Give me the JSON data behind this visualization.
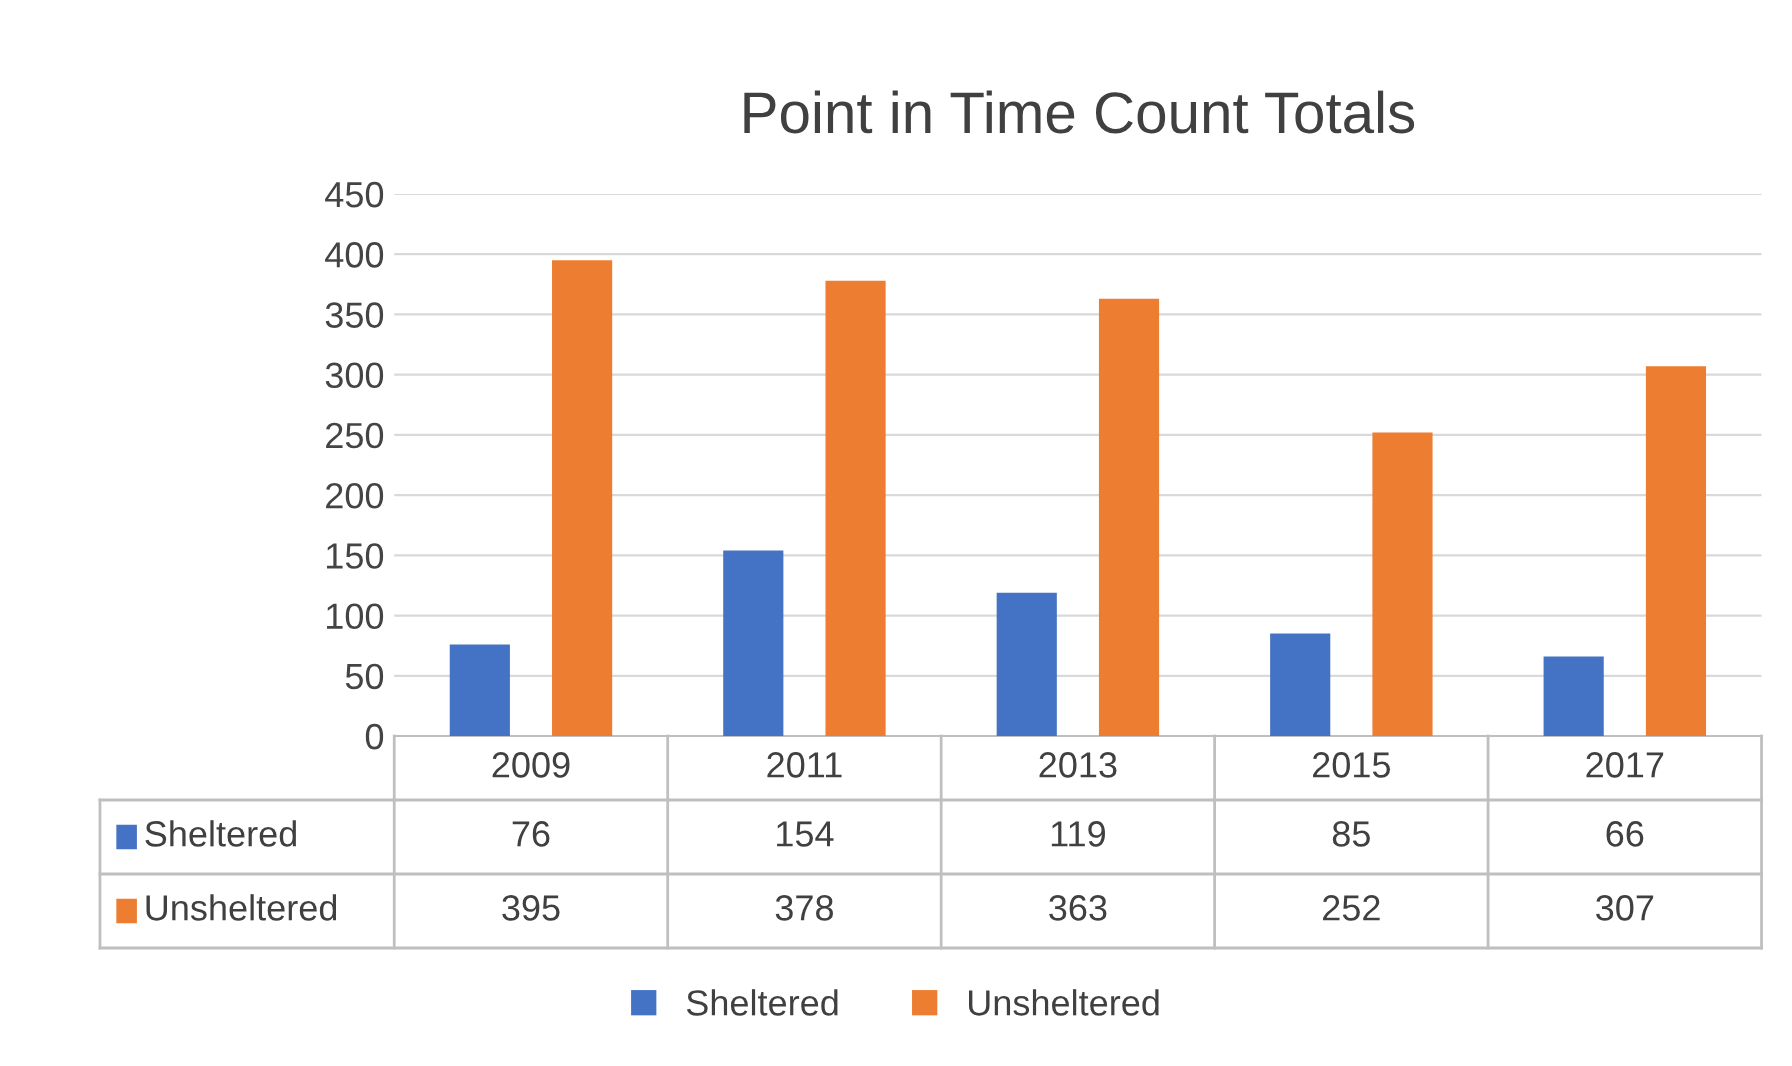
{
  "chart_data": {
    "type": "bar",
    "title": "Point in Time Count Totals",
    "categories": [
      "2009",
      "2011",
      "2013",
      "2015",
      "2017"
    ],
    "series": [
      {
        "name": "Sheltered",
        "color": "#4472c4",
        "values": [
          76,
          154,
          119,
          85,
          66
        ]
      },
      {
        "name": "Unsheltered",
        "color": "#ed7d31",
        "values": [
          395,
          378,
          363,
          252,
          307
        ]
      }
    ],
    "ylim": [
      0,
      450
    ],
    "yticks": [
      0,
      50,
      100,
      150,
      200,
      250,
      300,
      350,
      400,
      450
    ],
    "grid": "y",
    "legend": "bottom",
    "data_labels": true
  }
}
